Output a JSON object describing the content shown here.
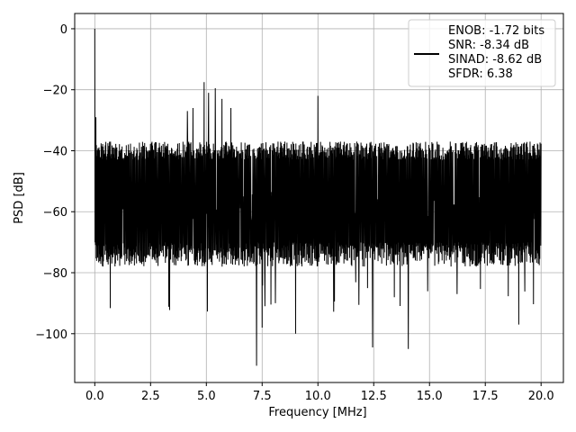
{
  "chart_data": {
    "type": "line",
    "xlabel": "Frequency [MHz]",
    "ylabel": "PSD [dB]",
    "xlim": [
      -0.9,
      21.0
    ],
    "ylim": [
      -116,
      5
    ],
    "xticks": [
      0.0,
      2.5,
      5.0,
      7.5,
      10.0,
      12.5,
      15.0,
      17.5,
      20.0
    ],
    "xtick_labels": [
      "0.0",
      "2.5",
      "5.0",
      "7.5",
      "10.0",
      "12.5",
      "15.0",
      "17.5",
      "20.0"
    ],
    "yticks": [
      0,
      -20,
      -40,
      -60,
      -80,
      -100
    ],
    "ytick_labels": [
      "0",
      "−20",
      "−40",
      "−60",
      "−80",
      "−100"
    ],
    "grid": true,
    "legend_position": "upper-right",
    "series": [
      {
        "color": "#000000",
        "noise_band_db": [
          -78,
          -37
        ],
        "noise_median_db": -58,
        "x_range": [
          0.0,
          20.0
        ],
        "points": [
          {
            "x": 0.0,
            "y": 0.0
          },
          {
            "x": 0.05,
            "y": -29
          },
          {
            "x": 4.15,
            "y": -27
          },
          {
            "x": 4.4,
            "y": -26
          },
          {
            "x": 4.9,
            "y": -17.5
          },
          {
            "x": 5.1,
            "y": -21
          },
          {
            "x": 5.4,
            "y": -19.5
          },
          {
            "x": 5.7,
            "y": -23
          },
          {
            "x": 6.1,
            "y": -26
          },
          {
            "x": 10.0,
            "y": -22
          },
          {
            "x": 12.45,
            "y": -104.5
          },
          {
            "x": 14.05,
            "y": -105
          },
          {
            "x": 7.25,
            "y": -110.5
          },
          {
            "x": 7.5,
            "y": -98
          },
          {
            "x": 9.0,
            "y": -100
          },
          {
            "x": 19.0,
            "y": -97
          }
        ]
      }
    ],
    "legend_lines": [
      "ENOB: -1.72 bits",
      "SNR: -8.34 dB",
      "SINAD: -8.62 dB",
      "SFDR: 6.38"
    ]
  }
}
